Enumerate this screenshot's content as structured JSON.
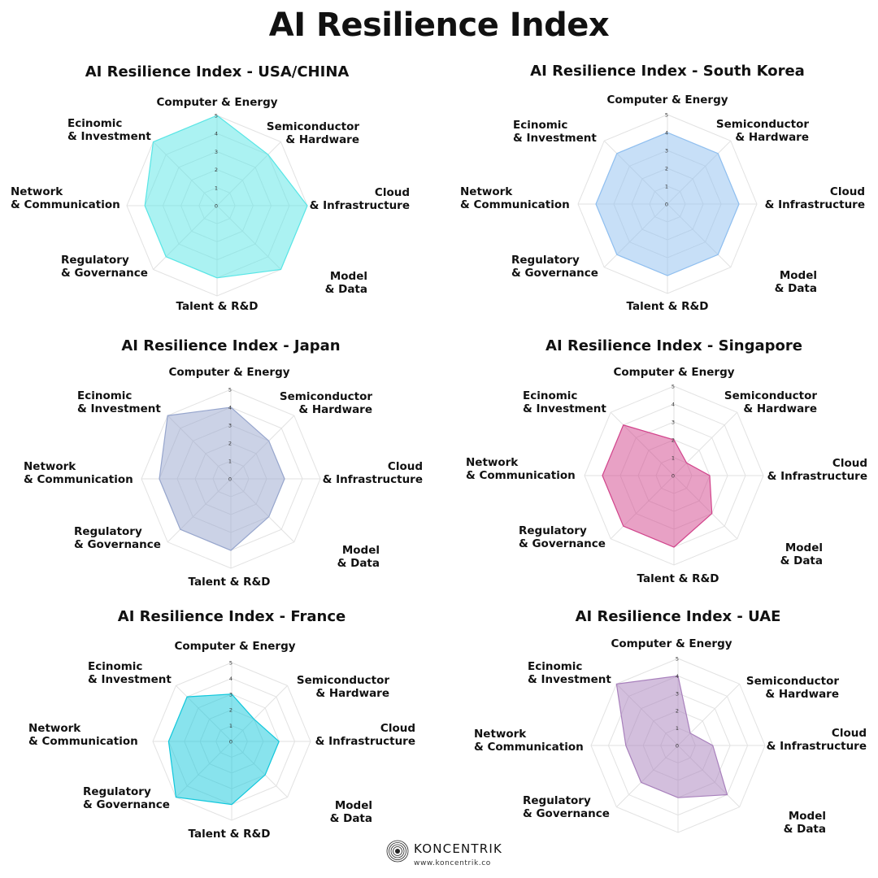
{
  "page": {
    "title": "AI Resilience Index",
    "footer_brand": "KONCENTRIK",
    "footer_url": "www.koncentrik.co"
  },
  "colors": {
    "grid": "#e2e2e2",
    "usa_china": "#58e6e6",
    "south_korea": "#8fbff0",
    "japan": "#97a6cd",
    "singapore": "#d2448c",
    "france": "#12c8dc",
    "uae": "#a880bc"
  },
  "chart_data": [
    {
      "type": "radar",
      "title": "AI Resilience Index - USA/CHINA",
      "axes": [
        "Computer & Energy",
        "Semiconductor & Hardware",
        "Cloud & Infrastructure",
        "Model & Data",
        "Talent & R&D",
        "Regulatory & Governance",
        "Network & Communication",
        "Ecinomic & Investment"
      ],
      "range": [
        0,
        5
      ],
      "ticks": [
        0,
        1,
        2,
        3,
        4,
        5
      ],
      "series": [
        {
          "name": "USA/CHINA",
          "values": [
            5,
            4,
            5,
            5,
            4,
            4,
            4,
            5
          ]
        }
      ]
    },
    {
      "type": "radar",
      "title": "AI Resilience Index - South Korea",
      "axes": [
        "Computer & Energy",
        "Semiconductor & Hardware",
        "Cloud & Infrastructure",
        "Model & Data",
        "Talent & R&D",
        "Regulatory & Governance",
        "Network & Communication",
        "Ecinomic & Investment"
      ],
      "range": [
        0,
        5
      ],
      "ticks": [
        0,
        1,
        2,
        3,
        4,
        5
      ],
      "series": [
        {
          "name": "South Korea",
          "values": [
            4,
            4,
            4,
            4,
            4,
            4,
            4,
            4
          ]
        }
      ]
    },
    {
      "type": "radar",
      "title": "AI Resilience Index - Japan",
      "axes": [
        "Computer & Energy",
        "Semiconductor & Hardware",
        "Cloud & Infrastructure",
        "Model & Data",
        "Talent & R&D",
        "Regulatory & Governance",
        "Network & Communication",
        "Ecinomic & Investment"
      ],
      "range": [
        0,
        5
      ],
      "ticks": [
        0,
        1,
        2,
        3,
        4,
        5
      ],
      "series": [
        {
          "name": "Japan",
          "values": [
            4,
            3,
            3,
            3,
            4,
            4,
            4,
            5
          ]
        }
      ]
    },
    {
      "type": "radar",
      "title": "AI Resilience Index - Singapore",
      "axes": [
        "Computer & Energy",
        "Semiconductor & Hardware",
        "Cloud & Infrastructure",
        "Model & Data",
        "Talent & R&D",
        "Regulatory & Governance",
        "Network & Communication",
        "Ecinomic & Investment"
      ],
      "range": [
        0,
        5
      ],
      "ticks": [
        0,
        1,
        2,
        3,
        4,
        5
      ],
      "series": [
        {
          "name": "Singapore",
          "values": [
            2,
            1,
            2,
            3,
            4,
            4,
            4,
            4
          ]
        }
      ]
    },
    {
      "type": "radar",
      "title": "AI Resilience Index - France",
      "axes": [
        "Computer & Energy",
        "Semiconductor & Hardware",
        "Cloud & Infrastructure",
        "Model & Data",
        "Talent & R&D",
        "Regulatory & Governance",
        "Network & Communication",
        "Ecinomic & Investment"
      ],
      "range": [
        0,
        5
      ],
      "ticks": [
        0,
        1,
        2,
        3,
        4,
        5
      ],
      "series": [
        {
          "name": "France",
          "values": [
            3,
            2,
            3,
            3,
            4,
            5,
            4,
            4
          ]
        }
      ]
    },
    {
      "type": "radar",
      "title": "AI Resilience Index - UAE",
      "axes": [
        "Computer & Energy",
        "Semiconductor & Hardware",
        "Cloud & Infrastructure",
        "Model & Data",
        "Talent & R&D",
        "Regulatory & Governance",
        "Network & Communication",
        "Ecinomic & Investment"
      ],
      "range": [
        0,
        5
      ],
      "ticks": [
        0,
        1,
        2,
        3,
        4,
        5
      ],
      "series": [
        {
          "name": "UAE",
          "values": [
            4,
            1,
            2,
            4,
            3,
            3,
            3,
            5
          ]
        }
      ],
      "inner_label": "Talent & R&D"
    }
  ]
}
